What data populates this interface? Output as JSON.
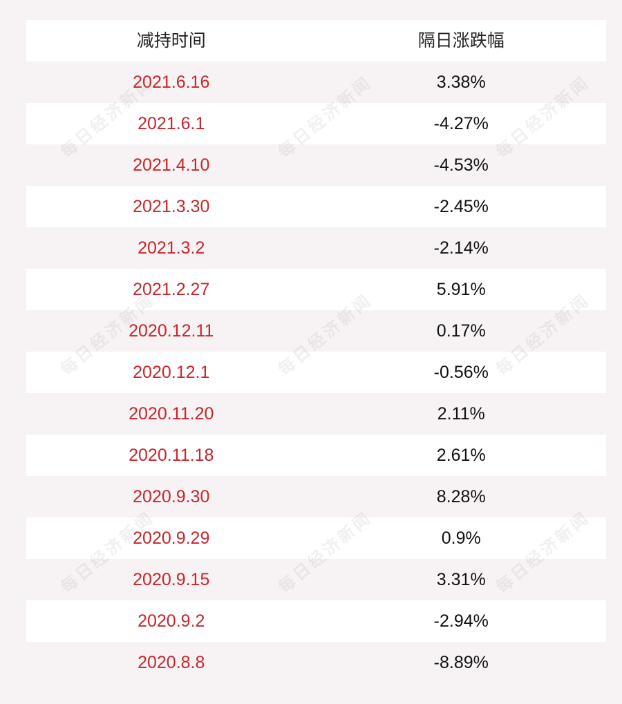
{
  "header": {
    "col1": "减持时间",
    "col2": "隔日涨跌幅"
  },
  "rows": [
    {
      "date": "2021.6.16",
      "change": "3.38%"
    },
    {
      "date": "2021.6.1",
      "change": "-4.27%"
    },
    {
      "date": "2021.4.10",
      "change": "-4.53%"
    },
    {
      "date": "2021.3.30",
      "change": "-2.45%"
    },
    {
      "date": "2021.3.2",
      "change": "-2.14%"
    },
    {
      "date": "2021.2.27",
      "change": "5.91%"
    },
    {
      "date": "2020.12.11",
      "change": "0.17%"
    },
    {
      "date": "2020.12.1",
      "change": "-0.56%"
    },
    {
      "date": "2020.11.20",
      "change": "2.11%"
    },
    {
      "date": "2020.11.18",
      "change": "2.61%"
    },
    {
      "date": "2020.9.30",
      "change": "8.28%"
    },
    {
      "date": "2020.9.29",
      "change": "0.9%"
    },
    {
      "date": "2020.9.15",
      "change": "3.31%"
    },
    {
      "date": "2020.9.2",
      "change": "-2.94%"
    },
    {
      "date": "2020.8.8",
      "change": "-8.89%"
    }
  ],
  "watermark": {
    "text": "每日经济新闻"
  },
  "colors": {
    "date_text": "#c8262b",
    "value_text": "#111111",
    "stripe": "#f7f2f3",
    "row": "#ffffff"
  }
}
